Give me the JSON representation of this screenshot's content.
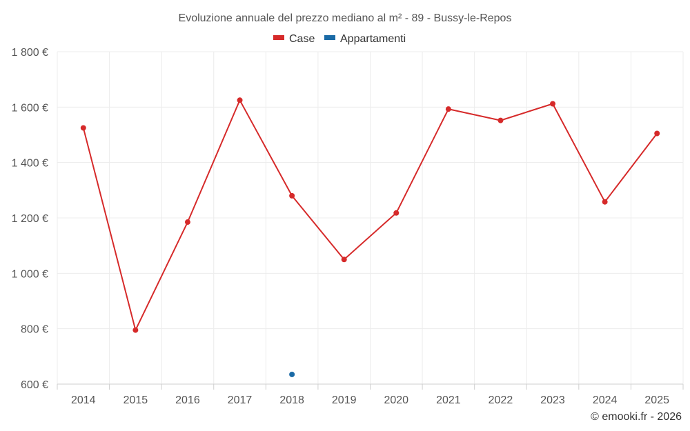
{
  "chart_data": {
    "type": "line",
    "title": "Evoluzione annuale del prezzo mediano al m² - 89 - Bussy-le-Repos",
    "categories": [
      "2014",
      "2015",
      "2016",
      "2017",
      "2018",
      "2019",
      "2020",
      "2021",
      "2022",
      "2023",
      "2024",
      "2025"
    ],
    "ylim": [
      600,
      1800
    ],
    "yticks": [
      600,
      800,
      1000,
      1200,
      1400,
      1600,
      1800
    ],
    "ytick_labels": [
      "600 €",
      "800 €",
      "1 000 €",
      "1 200 €",
      "1 400 €",
      "1 600 €",
      "1 800 €"
    ],
    "grid": true,
    "legend_position": "top-center",
    "series": [
      {
        "name": "Case",
        "color": "#d62a2a",
        "values": [
          1525,
          795,
          1185,
          1625,
          1280,
          1050,
          1218,
          1593,
          1552,
          1612,
          1258,
          1505
        ]
      },
      {
        "name": "Appartamenti",
        "color": "#1a6aa6",
        "values": [
          null,
          null,
          null,
          null,
          635,
          null,
          null,
          null,
          null,
          null,
          null,
          null
        ]
      }
    ]
  },
  "credit": "© emooki.fr - 2026"
}
